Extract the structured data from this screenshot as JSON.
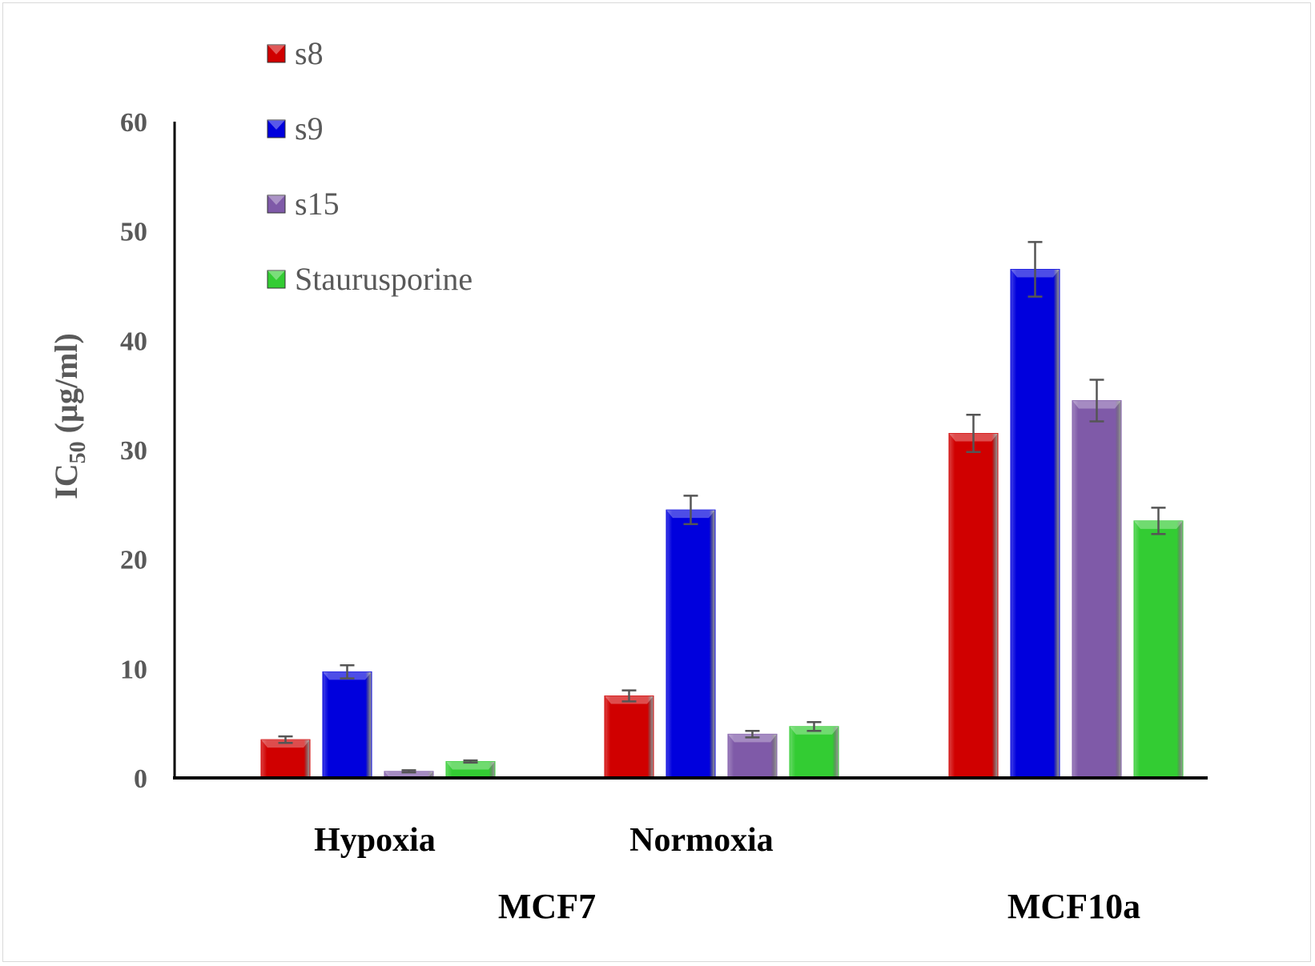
{
  "chart_data": {
    "type": "bar",
    "title": "",
    "ylabel_main": "IC",
    "ylabel_sub": "50",
    "ylabel_unit": " (µg/ml)",
    "ylim": [
      0,
      60
    ],
    "yticks": [
      0,
      10,
      20,
      30,
      40,
      50,
      60
    ],
    "categories": [
      "Hypoxia",
      "Normoxia",
      ""
    ],
    "groups": [
      "MCF7",
      "MCF10a"
    ],
    "legend_position": "top-left",
    "grid": false,
    "series": [
      {
        "name": "s8",
        "color": "#d00000",
        "values": [
          3.5,
          7.5,
          31.5
        ],
        "errors": [
          0.3,
          0.5,
          1.7
        ]
      },
      {
        "name": "s9",
        "color": "#0000dd",
        "values": [
          9.7,
          24.5,
          46.5
        ],
        "errors": [
          0.6,
          1.3,
          2.5
        ]
      },
      {
        "name": "s15",
        "color": "#7f5aa8",
        "values": [
          0.6,
          4.0,
          34.5
        ],
        "errors": [
          0.1,
          0.3,
          1.9
        ]
      },
      {
        "name": "Staurusporine",
        "color": "#33cc33",
        "values": [
          1.5,
          4.7,
          23.5
        ],
        "errors": [
          0.1,
          0.4,
          1.2
        ]
      }
    ]
  }
}
